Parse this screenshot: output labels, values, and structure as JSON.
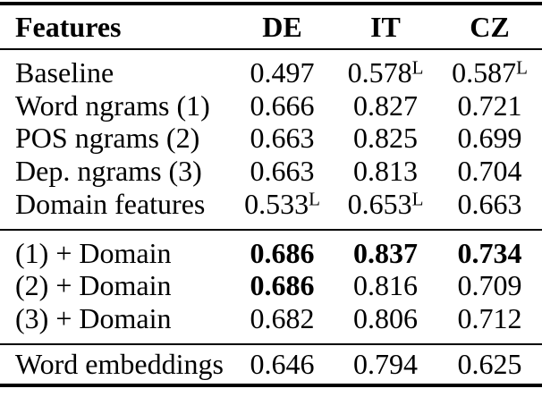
{
  "table": {
    "title": "feature-results-table",
    "header": {
      "features": "Features",
      "de": "DE",
      "it": "IT",
      "cz": "CZ"
    },
    "superscript_meaning_glyph": "L",
    "text_color": "#000000",
    "background_color": "#ffffff",
    "rows": [
      {
        "label": "Baseline",
        "de": "0.497",
        "de_sup": "",
        "it": "0.578",
        "it_sup": "L",
        "cz": "0.587",
        "cz_sup": "L",
        "bold": []
      },
      {
        "label": "Word ngrams (1)",
        "de": "0.666",
        "de_sup": "",
        "it": "0.827",
        "it_sup": "",
        "cz": "0.721",
        "cz_sup": "",
        "bold": []
      },
      {
        "label": "POS ngrams (2)",
        "de": "0.663",
        "de_sup": "",
        "it": "0.825",
        "it_sup": "",
        "cz": "0.699",
        "cz_sup": "",
        "bold": []
      },
      {
        "label": "Dep. ngrams (3)",
        "de": "0.663",
        "de_sup": "",
        "it": "0.813",
        "it_sup": "",
        "cz": "0.704",
        "cz_sup": "",
        "bold": []
      },
      {
        "label": "Domain features",
        "de": "0.533",
        "de_sup": "L",
        "it": "0.653",
        "it_sup": "L",
        "cz": "0.663",
        "cz_sup": "",
        "bold": []
      },
      {
        "label": "(1) + Domain",
        "de": "0.686",
        "de_sup": "",
        "it": "0.837",
        "it_sup": "",
        "cz": "0.734",
        "cz_sup": "",
        "bold": [
          "de",
          "it",
          "cz"
        ]
      },
      {
        "label": "(2) + Domain",
        "de": "0.686",
        "de_sup": "",
        "it": "0.816",
        "it_sup": "",
        "cz": "0.709",
        "cz_sup": "",
        "bold": [
          "de"
        ]
      },
      {
        "label": "(3) + Domain",
        "de": "0.682",
        "de_sup": "",
        "it": "0.806",
        "it_sup": "",
        "cz": "0.712",
        "cz_sup": "",
        "bold": []
      },
      {
        "label": "Word embeddings",
        "de": "0.646",
        "de_sup": "",
        "it": "0.794",
        "it_sup": "",
        "cz": "0.625",
        "cz_sup": "",
        "bold": []
      }
    ]
  }
}
